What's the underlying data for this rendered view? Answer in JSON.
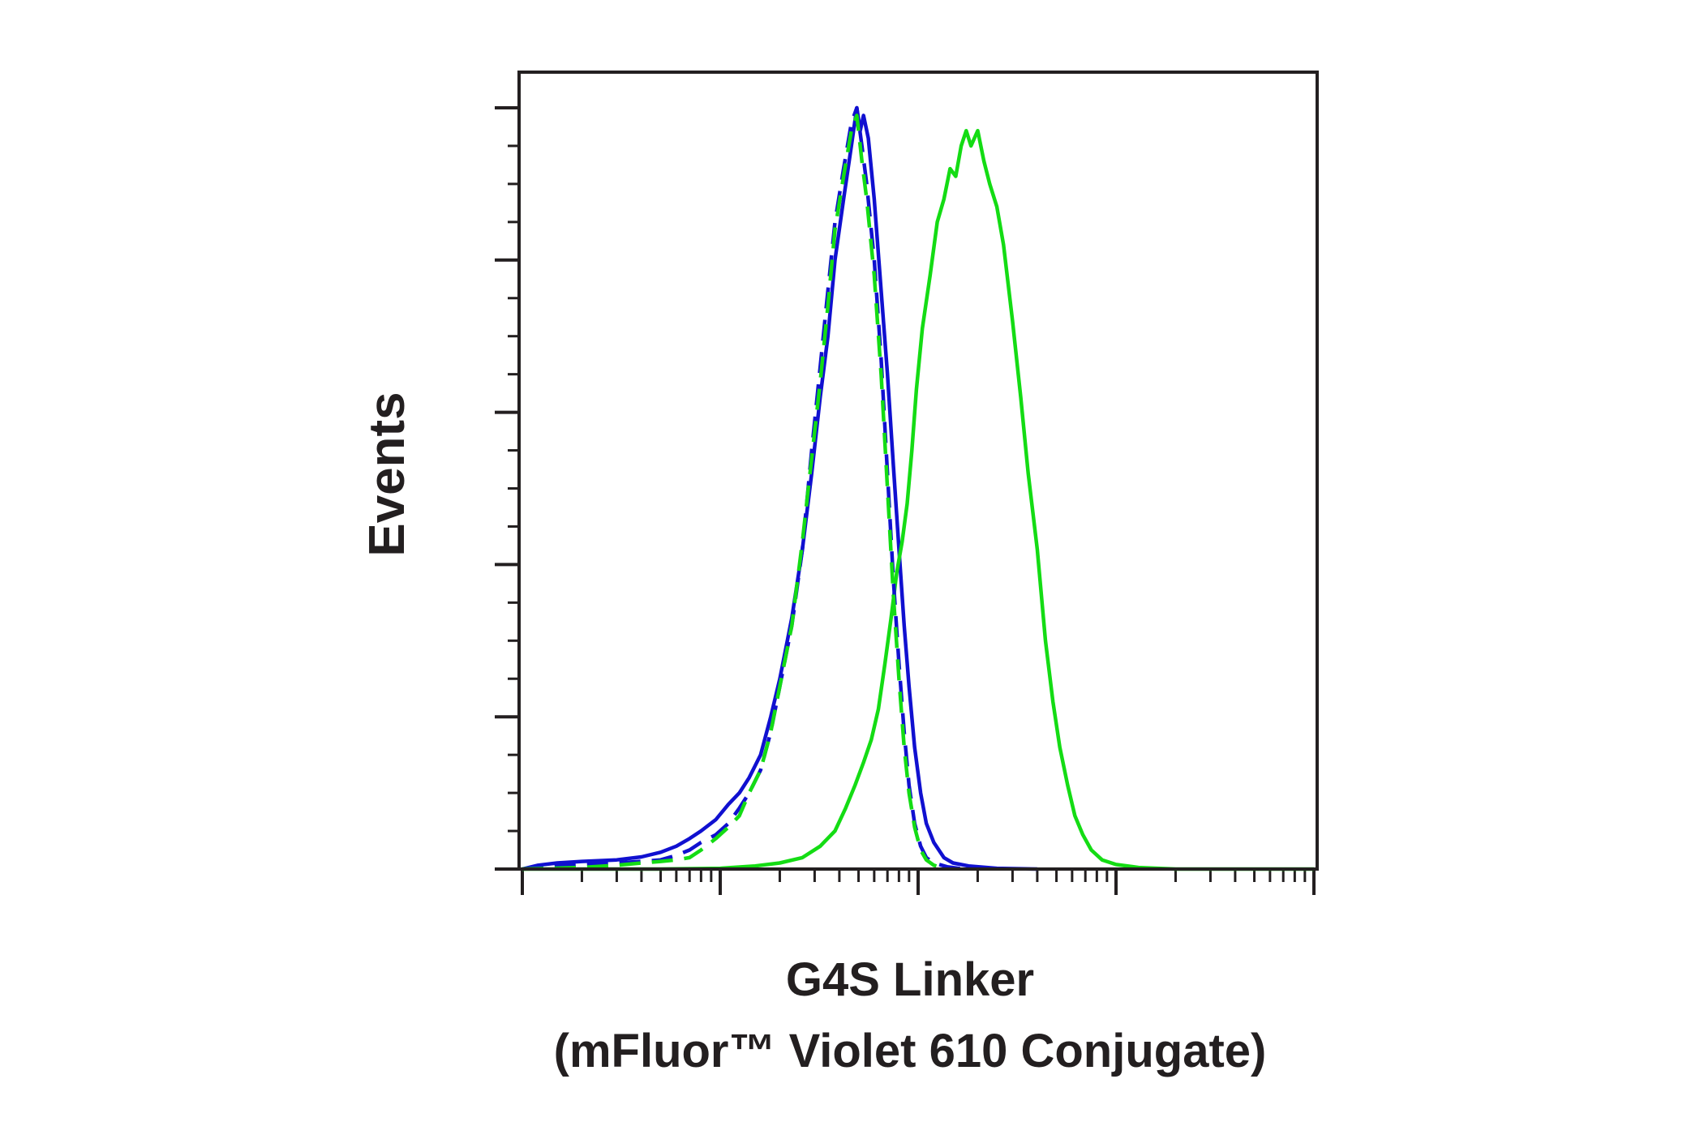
{
  "chart_data": {
    "type": "line",
    "title": "",
    "xlabel_line1": "G4S Linker",
    "xlabel_line2": "(mFluor™ Violet 610 Conjugate)",
    "ylabel": "Events",
    "x_scale": "log",
    "xlim": [
      10,
      100000
    ],
    "ylim": [
      0,
      1.05
    ],
    "x_major_ticks": [
      10,
      100,
      1000,
      10000,
      100000
    ],
    "tick_labels_shown": false,
    "y_tick_count": 20,
    "grid": false,
    "colors": {
      "blue": "#1010d0",
      "green": "#14dc14",
      "axis": "#231f20"
    },
    "series": [
      {
        "color": "blue",
        "style": "solid",
        "points": [
          [
            10,
            0.0
          ],
          [
            12,
            0.005
          ],
          [
            15,
            0.008
          ],
          [
            20,
            0.01
          ],
          [
            30,
            0.012
          ],
          [
            40,
            0.016
          ],
          [
            50,
            0.022
          ],
          [
            60,
            0.03
          ],
          [
            70,
            0.04
          ],
          [
            80,
            0.05
          ],
          [
            95,
            0.065
          ],
          [
            110,
            0.085
          ],
          [
            125,
            0.1
          ],
          [
            140,
            0.12
          ],
          [
            160,
            0.15
          ],
          [
            180,
            0.2
          ],
          [
            200,
            0.25
          ],
          [
            230,
            0.33
          ],
          [
            260,
            0.42
          ],
          [
            290,
            0.52
          ],
          [
            320,
            0.62
          ],
          [
            350,
            0.7
          ],
          [
            380,
            0.8
          ],
          [
            420,
            0.88
          ],
          [
            460,
            0.95
          ],
          [
            490,
            1.0
          ],
          [
            510,
            0.97
          ],
          [
            530,
            0.99
          ],
          [
            560,
            0.96
          ],
          [
            600,
            0.88
          ],
          [
            650,
            0.76
          ],
          [
            700,
            0.65
          ],
          [
            750,
            0.53
          ],
          [
            800,
            0.42
          ],
          [
            850,
            0.32
          ],
          [
            900,
            0.24
          ],
          [
            960,
            0.16
          ],
          [
            1030,
            0.1
          ],
          [
            1100,
            0.06
          ],
          [
            1200,
            0.035
          ],
          [
            1350,
            0.015
          ],
          [
            1500,
            0.008
          ],
          [
            1800,
            0.004
          ],
          [
            2500,
            0.001
          ],
          [
            4000,
            0.0
          ]
        ]
      },
      {
        "color": "blue",
        "style": "dashed",
        "points": [
          [
            10,
            0.0
          ],
          [
            12,
            0.002
          ],
          [
            15,
            0.004
          ],
          [
            20,
            0.006
          ],
          [
            30,
            0.008
          ],
          [
            40,
            0.01
          ],
          [
            50,
            0.012
          ],
          [
            60,
            0.018
          ],
          [
            70,
            0.025
          ],
          [
            80,
            0.035
          ],
          [
            95,
            0.045
          ],
          [
            110,
            0.06
          ],
          [
            125,
            0.08
          ],
          [
            140,
            0.1
          ],
          [
            160,
            0.13
          ],
          [
            180,
            0.18
          ],
          [
            200,
            0.24
          ],
          [
            230,
            0.32
          ],
          [
            260,
            0.42
          ],
          [
            290,
            0.55
          ],
          [
            320,
            0.66
          ],
          [
            350,
            0.76
          ],
          [
            380,
            0.85
          ],
          [
            420,
            0.92
          ],
          [
            460,
            0.98
          ],
          [
            490,
            1.0
          ],
          [
            520,
            0.95
          ],
          [
            550,
            0.9
          ],
          [
            600,
            0.8
          ],
          [
            650,
            0.67
          ],
          [
            700,
            0.52
          ],
          [
            750,
            0.38
          ],
          [
            800,
            0.27
          ],
          [
            850,
            0.18
          ],
          [
            900,
            0.11
          ],
          [
            960,
            0.06
          ],
          [
            1030,
            0.03
          ],
          [
            1100,
            0.015
          ],
          [
            1200,
            0.008
          ],
          [
            1400,
            0.003
          ],
          [
            1700,
            0.0
          ]
        ]
      },
      {
        "color": "green",
        "style": "dashed",
        "points": [
          [
            10,
            0.0
          ],
          [
            20,
            0.002
          ],
          [
            30,
            0.005
          ],
          [
            40,
            0.008
          ],
          [
            50,
            0.01
          ],
          [
            60,
            0.012
          ],
          [
            70,
            0.015
          ],
          [
            80,
            0.025
          ],
          [
            95,
            0.04
          ],
          [
            110,
            0.055
          ],
          [
            125,
            0.07
          ],
          [
            140,
            0.1
          ],
          [
            160,
            0.13
          ],
          [
            180,
            0.18
          ],
          [
            200,
            0.24
          ],
          [
            230,
            0.32
          ],
          [
            260,
            0.43
          ],
          [
            290,
            0.54
          ],
          [
            320,
            0.64
          ],
          [
            350,
            0.74
          ],
          [
            380,
            0.84
          ],
          [
            420,
            0.91
          ],
          [
            460,
            0.97
          ],
          [
            490,
            0.99
          ],
          [
            520,
            0.93
          ],
          [
            550,
            0.88
          ],
          [
            600,
            0.78
          ],
          [
            650,
            0.65
          ],
          [
            700,
            0.5
          ],
          [
            750,
            0.36
          ],
          [
            800,
            0.25
          ],
          [
            850,
            0.16
          ],
          [
            900,
            0.1
          ],
          [
            960,
            0.055
          ],
          [
            1030,
            0.025
          ],
          [
            1100,
            0.012
          ],
          [
            1200,
            0.005
          ],
          [
            1400,
            0.0
          ]
        ]
      },
      {
        "color": "green",
        "style": "solid",
        "points": [
          [
            10,
            0.0
          ],
          [
            50,
            0.0
          ],
          [
            100,
            0.001
          ],
          [
            150,
            0.004
          ],
          [
            200,
            0.008
          ],
          [
            260,
            0.015
          ],
          [
            320,
            0.03
          ],
          [
            380,
            0.05
          ],
          [
            430,
            0.08
          ],
          [
            480,
            0.11
          ],
          [
            530,
            0.14
          ],
          [
            580,
            0.17
          ],
          [
            630,
            0.21
          ],
          [
            680,
            0.27
          ],
          [
            730,
            0.33
          ],
          [
            780,
            0.39
          ],
          [
            830,
            0.43
          ],
          [
            880,
            0.48
          ],
          [
            930,
            0.55
          ],
          [
            980,
            0.63
          ],
          [
            1050,
            0.71
          ],
          [
            1150,
            0.78
          ],
          [
            1250,
            0.85
          ],
          [
            1350,
            0.88
          ],
          [
            1450,
            0.92
          ],
          [
            1550,
            0.91
          ],
          [
            1650,
            0.95
          ],
          [
            1750,
            0.97
          ],
          [
            1850,
            0.95
          ],
          [
            2000,
            0.97
          ],
          [
            2150,
            0.93
          ],
          [
            2300,
            0.9
          ],
          [
            2500,
            0.87
          ],
          [
            2700,
            0.82
          ],
          [
            3000,
            0.72
          ],
          [
            3300,
            0.62
          ],
          [
            3600,
            0.52
          ],
          [
            4000,
            0.42
          ],
          [
            4400,
            0.3
          ],
          [
            4800,
            0.22
          ],
          [
            5200,
            0.16
          ],
          [
            5700,
            0.11
          ],
          [
            6200,
            0.07
          ],
          [
            6800,
            0.045
          ],
          [
            7500,
            0.025
          ],
          [
            8500,
            0.012
          ],
          [
            10000,
            0.006
          ],
          [
            13000,
            0.002
          ],
          [
            20000,
            0.0
          ],
          [
            100000,
            0.0
          ]
        ]
      }
    ]
  }
}
